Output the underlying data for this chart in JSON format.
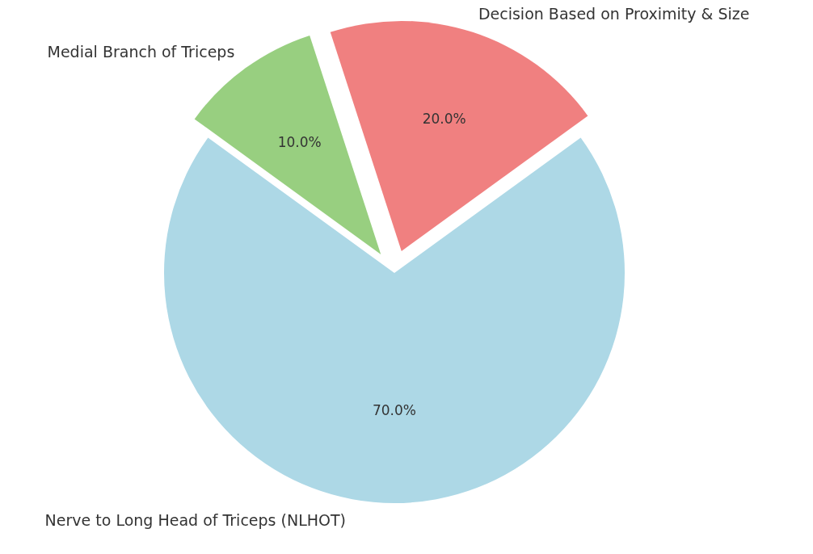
{
  "chart_data": {
    "type": "pie",
    "categories": [
      "Nerve to Long Head of Triceps (NLHOT)",
      "Decision Based on Proximity & Size",
      "Medial Branch of Triceps"
    ],
    "values": [
      70,
      20,
      10
    ],
    "colors": [
      "#add8e6",
      "#f08080",
      "#98cf80"
    ],
    "value_labels": [
      "70.0%",
      "20.0%",
      "10.0%"
    ]
  }
}
